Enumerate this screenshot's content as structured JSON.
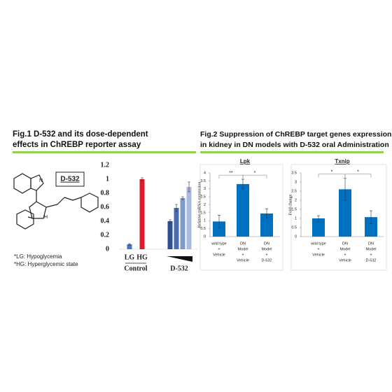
{
  "header": {
    "fig1_title": [
      "Fig.1 D-532 and its dose-dependent",
      "effects in ChREBP reporter assay"
    ],
    "fig2_title": [
      "Fig.2 Suppression of ChREBP target genes expression",
      "in kidney in DN models with D-532 oral Administration"
    ],
    "compound_label": "D-532",
    "notes": [
      "*LG: Hypoglycemia",
      "*HG: Hyperglycemic state"
    ]
  },
  "chart_data": [
    {
      "type": "bar",
      "categories": [
        [
          "LG"
        ],
        [
          "HG"
        ],
        null,
        null,
        null,
        null
      ],
      "values": [
        0.07,
        1.0,
        0.4,
        0.59,
        0.73,
        0.89
      ],
      "errors": [
        0.01,
        0.02,
        0.02,
        0.05,
        0.02,
        0.07
      ],
      "colors": [
        "#4472c4",
        "#e0192b",
        "#2f4f8f",
        "#4a6cae",
        "#7f99cc",
        "#aab9e0"
      ],
      "groups": [
        "Control",
        "D-532"
      ],
      "ylim": [
        0,
        1.2
      ],
      "yticks": [
        0,
        0.2,
        0.4,
        0.6,
        0.8,
        1,
        1.2
      ]
    },
    {
      "type": "bar",
      "title": "Lpk",
      "ylabel": "Relative mRNA expression",
      "categories": [
        [
          "wild type",
          "+",
          "Vehicle"
        ],
        [
          "DN",
          "Model",
          "+",
          "Vehicle"
        ],
        [
          "DN",
          "Model",
          "+",
          "D-532"
        ]
      ],
      "values": [
        0.95,
        3.3,
        1.45
      ],
      "errors": [
        0.4,
        0.3,
        0.3
      ],
      "color": "#0070c0",
      "annotations": [
        {
          "label": "**",
          "from": 0,
          "to": 1
        },
        {
          "label": "*",
          "from": 1,
          "to": 2
        }
      ],
      "ylim": [
        0,
        4
      ],
      "yticks": [
        0,
        0.5,
        1,
        1.5,
        2,
        2.5,
        3,
        3.5,
        4
      ]
    },
    {
      "type": "bar",
      "title": "Txnip",
      "ylabel": "Fold change",
      "categories": [
        [
          "wild type",
          "+",
          "Vehicle"
        ],
        [
          "DN",
          "Model",
          "+",
          "Vehicle"
        ],
        [
          "DN",
          "Model",
          "+",
          "D-532"
        ]
      ],
      "values": [
        1.0,
        2.6,
        1.07
      ],
      "errors": [
        0.15,
        0.6,
        0.35
      ],
      "color": "#0070c0",
      "annotations": [
        {
          "label": "*",
          "from": 0,
          "to": 1
        },
        {
          "label": "*",
          "from": 1,
          "to": 2
        }
      ],
      "ylim": [
        0,
        3.5
      ],
      "yticks": [
        0,
        0.5,
        1,
        1.5,
        2,
        2.5,
        3,
        3.5
      ]
    }
  ]
}
